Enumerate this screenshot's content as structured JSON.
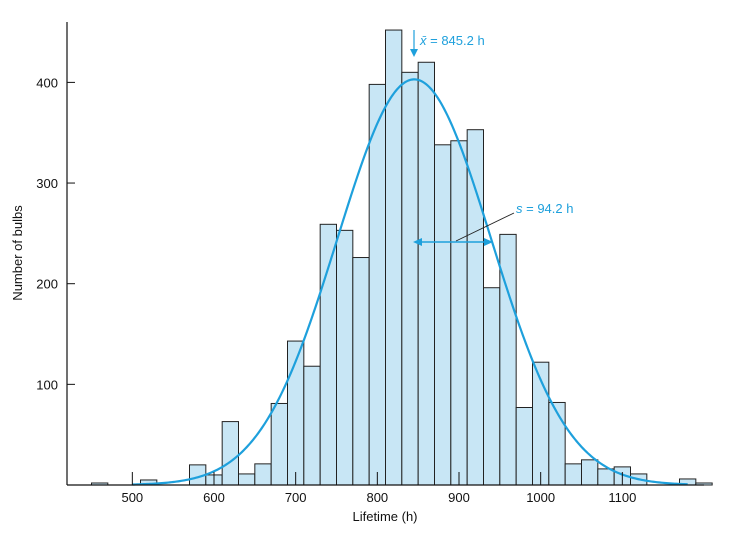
{
  "chart_data": {
    "type": "bar",
    "title": "",
    "xlabel": "Lifetime (h)",
    "ylabel": "Number of bulbs",
    "xlim": [
      420,
      1200
    ],
    "ylim": [
      0,
      460
    ],
    "bin_width": 20,
    "x_ticks": [
      500,
      600,
      700,
      800,
      900,
      1000,
      1100
    ],
    "y_ticks": [
      100,
      200,
      300,
      400
    ],
    "bins": [
      {
        "start": 450,
        "value": 2
      },
      {
        "start": 510,
        "value": 5
      },
      {
        "start": 570,
        "value": 20
      },
      {
        "start": 590,
        "value": 10
      },
      {
        "start": 610,
        "value": 63
      },
      {
        "start": 630,
        "value": 11
      },
      {
        "start": 650,
        "value": 21
      },
      {
        "start": 670,
        "value": 81
      },
      {
        "start": 690,
        "value": 143
      },
      {
        "start": 710,
        "value": 118
      },
      {
        "start": 730,
        "value": 259
      },
      {
        "start": 750,
        "value": 253
      },
      {
        "start": 770,
        "value": 226
      },
      {
        "start": 790,
        "value": 398
      },
      {
        "start": 810,
        "value": 452
      },
      {
        "start": 830,
        "value": 410
      },
      {
        "start": 850,
        "value": 420
      },
      {
        "start": 870,
        "value": 338
      },
      {
        "start": 890,
        "value": 342
      },
      {
        "start": 910,
        "value": 353
      },
      {
        "start": 930,
        "value": 196
      },
      {
        "start": 950,
        "value": 249
      },
      {
        "start": 970,
        "value": 77
      },
      {
        "start": 990,
        "value": 122
      },
      {
        "start": 1010,
        "value": 82
      },
      {
        "start": 1030,
        "value": 21
      },
      {
        "start": 1050,
        "value": 25
      },
      {
        "start": 1070,
        "value": 16
      },
      {
        "start": 1090,
        "value": 18
      },
      {
        "start": 1110,
        "value": 11
      },
      {
        "start": 1170,
        "value": 6
      },
      {
        "start": 1190,
        "value": 2
      }
    ],
    "fit_curve": {
      "mean": 845.2,
      "sd": 94.2,
      "peak": 403
    },
    "annotations": {
      "mean_label_sym": "x̄",
      "mean_label_val": " = 845.2 h",
      "sd_label_sym": "s",
      "sd_label_val": " = 94.2 h"
    },
    "colors": {
      "bar_fill": "#c8e6f5",
      "bar_stroke": "#222222",
      "curve": "#1ea0dc",
      "annotation": "#1ea0dc",
      "axis": "#111111"
    }
  }
}
